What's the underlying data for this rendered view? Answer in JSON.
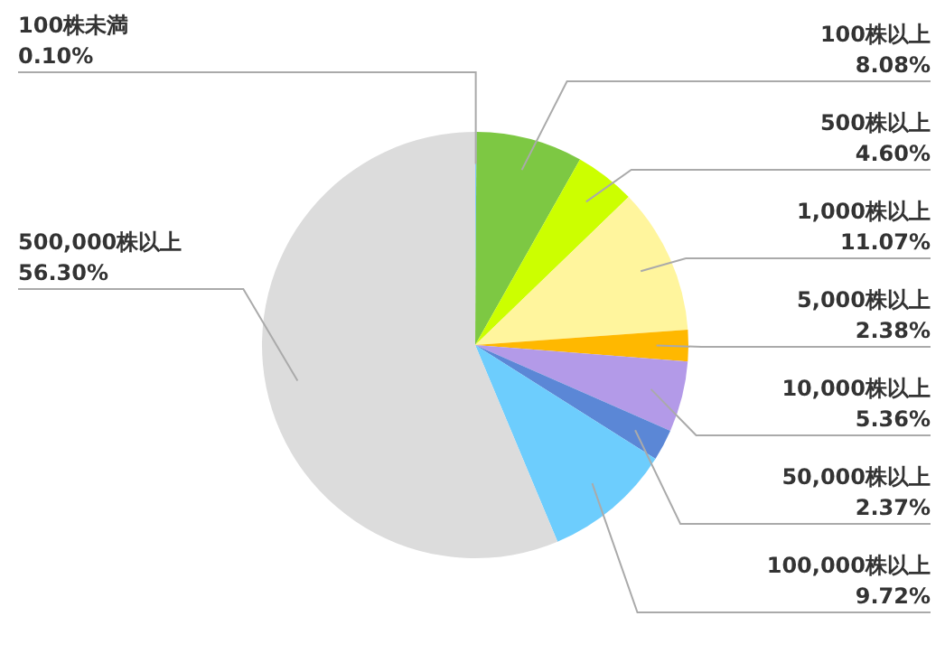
{
  "chart_data": {
    "type": "pie",
    "categories": [
      "100株未満",
      "100株以上",
      "500株以上",
      "1,000株以上",
      "5,000株以上",
      "10,000株以上",
      "50,000株以上",
      "100,000株以上",
      "500,000株以上"
    ],
    "values": [
      0.1,
      8.08,
      4.6,
      11.07,
      2.38,
      5.36,
      2.37,
      9.72,
      56.3
    ],
    "value_labels": [
      "0.10%",
      "8.08%",
      "4.60%",
      "11.07%",
      "2.38%",
      "5.36%",
      "2.37%",
      "9.72%",
      "56.30%"
    ],
    "colors": [
      "#7fc8f8",
      "#7dc843",
      "#ccff00",
      "#fff59d",
      "#ffb800",
      "#b39ae8",
      "#5b87d6",
      "#6dcdfd",
      "#dcdcdc"
    ]
  }
}
